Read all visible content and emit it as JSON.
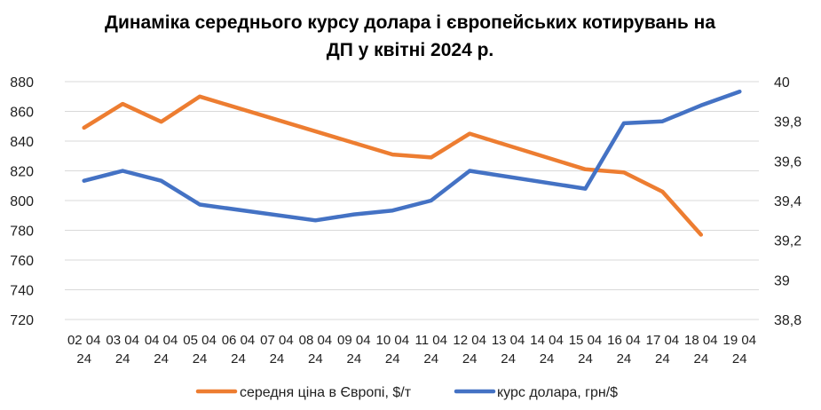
{
  "chart_data": {
    "type": "line",
    "title_line1": "Динаміка середнього курсу долара і європейських котирувань на",
    "title_line2": "ДП у квітні 2024 р.",
    "categories": [
      [
        "02 04",
        "24"
      ],
      [
        "03 04",
        "24"
      ],
      [
        "04 04",
        "24"
      ],
      [
        "05 04",
        "24"
      ],
      [
        "06 04",
        "24"
      ],
      [
        "07 04",
        "24"
      ],
      [
        "08 04",
        "24"
      ],
      [
        "09 04",
        "24"
      ],
      [
        "10 04",
        "24"
      ],
      [
        "11 04",
        "24"
      ],
      [
        "12 04",
        "24"
      ],
      [
        "13 04",
        "24"
      ],
      [
        "14 04",
        "24"
      ],
      [
        "15 04",
        "24"
      ],
      [
        "16 04",
        "24"
      ],
      [
        "17 04",
        "24"
      ],
      [
        "18 04",
        "24"
      ],
      [
        "19 04",
        "24"
      ]
    ],
    "left_axis": {
      "min": 720,
      "max": 880,
      "step": 20,
      "ticks": [
        "720",
        "740",
        "760",
        "780",
        "800",
        "820",
        "840",
        "860",
        "880"
      ]
    },
    "right_axis": {
      "min": 38.8,
      "max": 40,
      "step": 0.2,
      "ticks": [
        "38,8",
        "39",
        "39,2",
        "39,4",
        "39,6",
        "39,8",
        "40"
      ]
    },
    "grid": true,
    "legend_position": "bottom",
    "series": [
      {
        "name": "середня ціна в Європі, $/т",
        "axis": "left",
        "color": "#ED7D31",
        "points": [
          [
            0,
            849
          ],
          [
            1,
            865
          ],
          [
            2,
            853
          ],
          [
            3,
            870
          ],
          [
            8,
            831
          ],
          [
            9,
            829
          ],
          [
            10,
            845
          ],
          [
            13,
            821
          ],
          [
            14,
            819
          ],
          [
            15,
            806
          ],
          [
            16,
            777
          ]
        ]
      },
      {
        "name": "курс долара, грн/$",
        "axis": "right",
        "color": "#4472C4",
        "points": [
          [
            0,
            39.5
          ],
          [
            1,
            39.55
          ],
          [
            2,
            39.5
          ],
          [
            3,
            39.38
          ],
          [
            6,
            39.3
          ],
          [
            7,
            39.33
          ],
          [
            8,
            39.35
          ],
          [
            9,
            39.4
          ],
          [
            10,
            39.55
          ],
          [
            13,
            39.46
          ],
          [
            14,
            39.79
          ],
          [
            15,
            39.8
          ],
          [
            16,
            39.88
          ],
          [
            17,
            39.95
          ]
        ]
      }
    ]
  }
}
